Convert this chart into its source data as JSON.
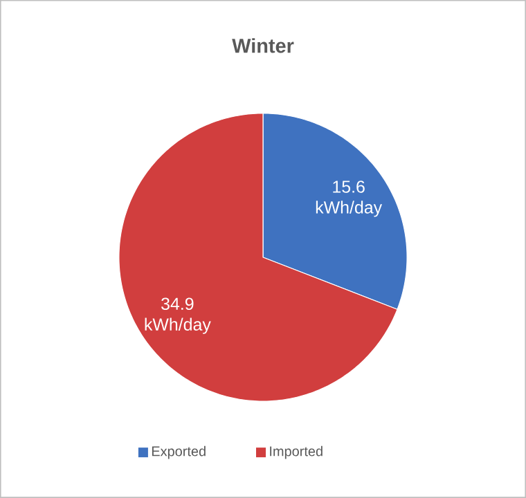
{
  "chart_data": {
    "type": "pie",
    "title": "Winter",
    "categories": [
      "Exported",
      "Imported"
    ],
    "values": [
      15.6,
      34.9
    ],
    "colors": [
      "#3f72c0",
      "#d13e3e"
    ],
    "value_labels": [
      "15.6 kWh/day",
      "34.9 kWh/day"
    ],
    "legend": "bottom"
  }
}
